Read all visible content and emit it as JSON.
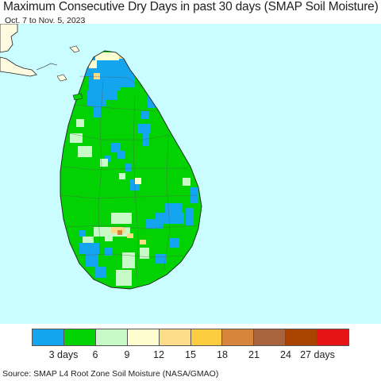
{
  "title": "Maximum Consecutive Dry Days in past 30 days (SMAP Soil Moisture)",
  "subtitle": "Oct. 7 to Nov. 5, 2023",
  "source": "Source: SMAP L4 Root Zone Soil Moisture (NASA/GMAO)",
  "colors": {
    "ocean": "#c9fdff",
    "land_outside": "#fffbe0",
    "coast": "#222222",
    "district_border": "#5a5a5a"
  },
  "legend": {
    "colors": [
      "#14a5f0",
      "#02d202",
      "#c8fac8",
      "#fefed0",
      "#fddc88",
      "#fbcc40",
      "#d8843c",
      "#a8643c",
      "#a84400",
      "#e61414"
    ],
    "tick_labels": [
      "3 days",
      "6",
      "9",
      "12",
      "15",
      "18",
      "21",
      "24",
      "27 days"
    ]
  }
}
